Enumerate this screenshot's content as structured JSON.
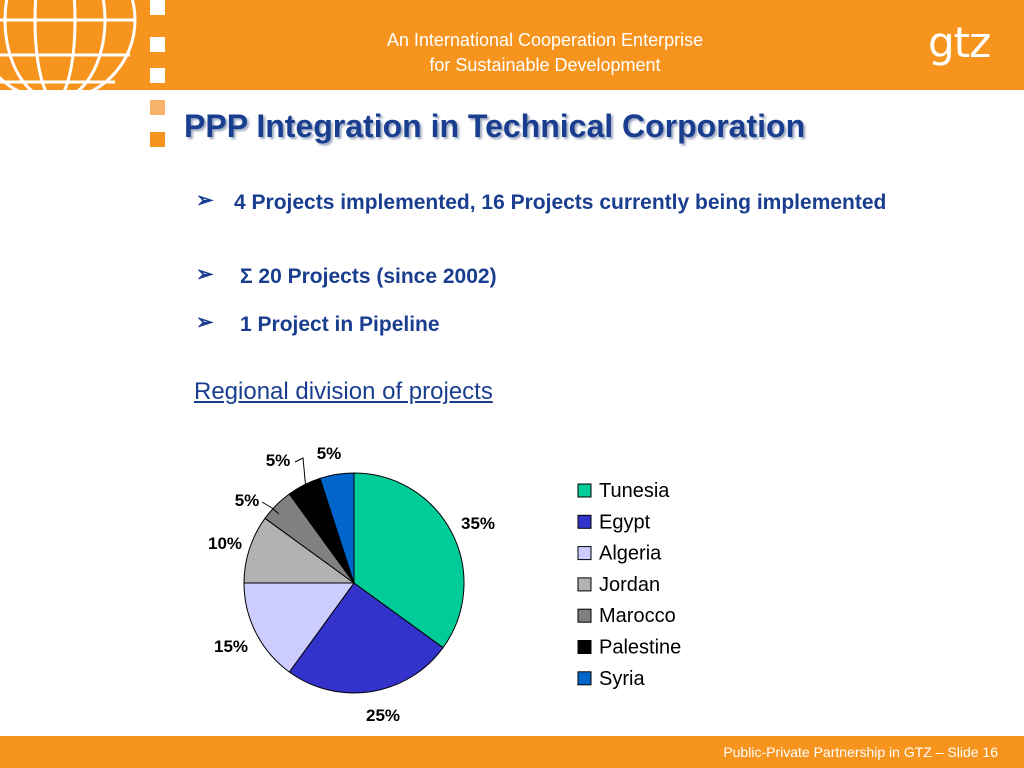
{
  "header": {
    "line1": "An International Cooperation Enterprise",
    "line2": "for Sustainable Development",
    "logo_text": "gtz"
  },
  "title": "PPP Integration in Technical Corporation",
  "bullets": [
    {
      "marker": "➢",
      "text": "4 Projects implemented, 16 Projects currently being implemented"
    },
    {
      "marker": "➢",
      "text": "Σ 20 Projects (since 2002)"
    },
    {
      "marker": "➢",
      "text": "1 Project in Pipeline"
    }
  ],
  "section_heading": "Regional division of projects",
  "chart_data": {
    "type": "pie",
    "title": "",
    "categories": [
      "Tunesia",
      "Egypt",
      "Algeria",
      "Jordan",
      "Marocco",
      "Palestine",
      "Syria"
    ],
    "values": [
      35,
      25,
      15,
      10,
      5,
      5,
      5
    ],
    "labels": [
      "35%",
      "25%",
      "15%",
      "10%",
      "5%",
      "5%",
      "5%"
    ],
    "colors": [
      "#00cc99",
      "#3333cc",
      "#ccccff",
      "#b2b2b2",
      "#808080",
      "#000000",
      "#0066cc"
    ],
    "legend": "right"
  },
  "footer": {
    "text": "Public-Private Partnership in GTZ – Slide 16"
  }
}
